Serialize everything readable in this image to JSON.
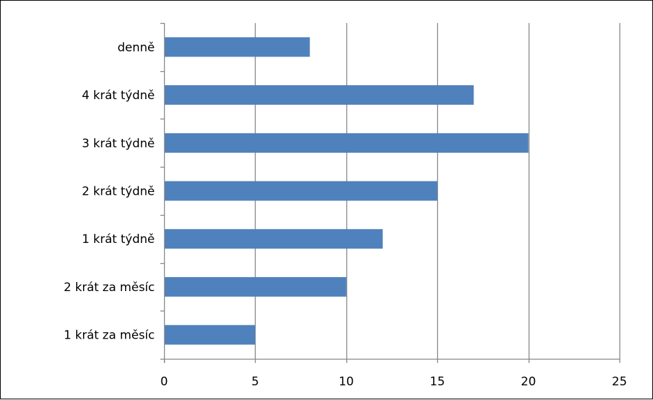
{
  "chart_data": {
    "type": "bar",
    "orientation": "horizontal",
    "categories": [
      "1 krát za měsíc",
      "2 krát za měsíc",
      "1 krát týdně",
      "2 krát týdně",
      "3 krát týdně",
      "4 krát týdně",
      "denně"
    ],
    "values": [
      5,
      10,
      12,
      15,
      20,
      17,
      8
    ],
    "x_ticks": [
      "0",
      "5",
      "10",
      "15",
      "20",
      "25"
    ],
    "xlim": [
      0,
      25
    ],
    "grid": "vertical major gridlines",
    "legend": "none",
    "title": "",
    "xlabel": "",
    "ylabel": "",
    "bar_color": "#4F81BD",
    "grid_color": "#868686",
    "axis_color": "#868686"
  }
}
